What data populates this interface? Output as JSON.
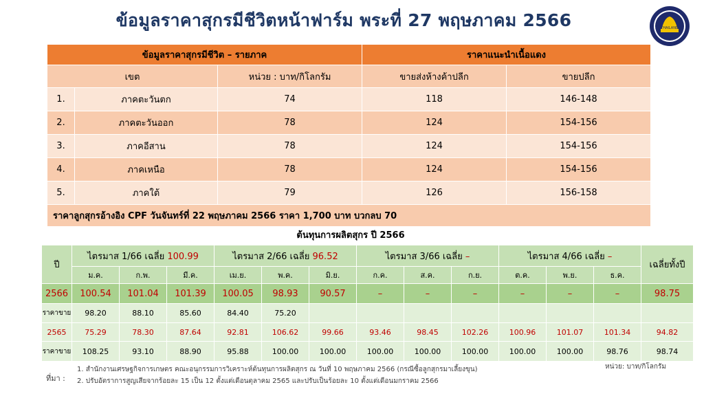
{
  "title": "ข้อมูลราคาสุกรมีชีวิตหน้าฟาร์ม พระที่  27 พฤษภาคม 2566",
  "logo": {
    "text": "THAILAND"
  },
  "regional_table": {
    "group_header_left": "ข้อมูลราคาสุกรมีชีวิต – รายภาค",
    "group_header_right": "ราคาแนะนำเนื้อแดง",
    "col_region": "เขต",
    "col_unit": "หน่วย : บาท/กิโลกรัม",
    "col_wholesale": "ขายส่งห้างค้าปลีก",
    "col_retail": "ขายปลีก",
    "rows": [
      {
        "no": "1.",
        "region": "ภาคตะวันตก",
        "price": "74",
        "wholesale": "118",
        "retail": "146-148"
      },
      {
        "no": "2.",
        "region": "ภาคตะวันออก",
        "price": "78",
        "wholesale": "124",
        "retail": "154-156"
      },
      {
        "no": "3.",
        "region": "ภาคอีสาน",
        "price": "78",
        "wholesale": "124",
        "retail": "154-156"
      },
      {
        "no": "4.",
        "region": "ภาคเหนือ",
        "price": "78",
        "wholesale": "124",
        "retail": "154-156"
      },
      {
        "no": "5.",
        "region": "ภาคใต้",
        "price": "79",
        "wholesale": "126",
        "retail": "156-158"
      }
    ],
    "note": "ราคาลูกสุกรอ้างอิง CPF วันจันทร์ที่  22 พฤษภาคม  2566 ราคา 1,700 บาท บวกลบ 70"
  },
  "cost_table": {
    "title": "ต้นทุนการผลิตสุกร ปี 2566",
    "col_year": "ปี",
    "col_avg": "เฉลี่ยทั้งปี",
    "quarters": [
      {
        "label": "ไตรมาส 1/66 เฉลี่ย ",
        "avg": "100.99"
      },
      {
        "label": "ไตรมาส 2/66 เฉลี่ย ",
        "avg": "96.52"
      },
      {
        "label": "ไตรมาส 3/66 เฉลี่ย ",
        "avg": "–"
      },
      {
        "label": "ไตรมาส 4/66 เฉลี่ย ",
        "avg": "–"
      }
    ],
    "months": [
      "ม.ค.",
      "ก.พ.",
      "มี.ค.",
      "เม.ย.",
      "พ.ค.",
      "มิ.ย.",
      "ก.ค.",
      "ส.ค.",
      "ก.ย.",
      "ต.ค.",
      "พ.ย.",
      "ธ.ค."
    ],
    "rows": [
      {
        "label": "2566",
        "values": [
          "100.54",
          "101.04",
          "101.39",
          "100.05",
          "98.93",
          "90.57",
          "–",
          "–",
          "–",
          "–",
          "–",
          "–"
        ],
        "avg": "98.75"
      },
      {
        "label": "ราคาขาย",
        "values": [
          "98.20",
          "88.10",
          "85.60",
          "84.40",
          "75.20",
          "",
          "",
          "",
          "",
          "",
          "",
          ""
        ],
        "avg": ""
      },
      {
        "label": "2565",
        "values": [
          "75.29",
          "78.30",
          "87.64",
          "92.81",
          "106.62",
          "99.66",
          "93.46",
          "98.45",
          "102.26",
          "100.96",
          "101.07",
          "101.34"
        ],
        "avg": "94.82"
      },
      {
        "label": "ราคาขาย",
        "values": [
          "108.25",
          "93.10",
          "88.90",
          "95.88",
          "100.00",
          "100.00",
          "100.00",
          "100.00",
          "100.00",
          "100.00",
          "100.00",
          "98.76"
        ],
        "avg": "98.74"
      }
    ]
  },
  "footer": {
    "source_label": "ที่มา :",
    "source_1": "1. สำนักงานเศรษฐกิจการเกษตร  คณะอนุกรรมการวิเคราะห์ต้นทุนการผลิตสุกร  ณ วันที่ 10 พฤษภาคม  2566 (กรณีซื้อลูกสุกรมาเลี้ยงขุน)",
    "source_2": "2. ปรับอัตราการสูญเสียจากร้อยละ  15 เป็น 12 ตั้งแต่เดือนตุลาคม  2565 และปรับเป็นร้อยละ  10 ตั้งแต่เดือนมกราคม  2566",
    "unit": "หน่วย: บาท/กิโลกรัม"
  },
  "colors": {
    "title": "#1f3864",
    "orange_header": "#ed7d31",
    "peach": "#f8cbad",
    "green": "#a9d18e",
    "accent_red": "#c00000"
  }
}
